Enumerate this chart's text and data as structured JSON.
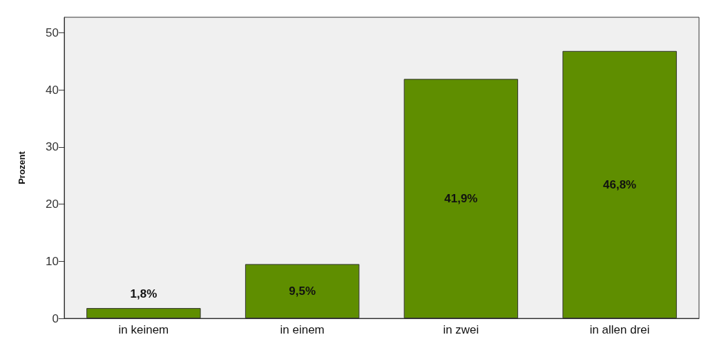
{
  "chart_data": {
    "type": "bar",
    "ylabel": "Prozent",
    "categories": [
      "in keinem",
      "in einem",
      "in zwei",
      "in allen drei"
    ],
    "values": [
      1.8,
      9.5,
      41.9,
      46.8
    ],
    "value_labels": [
      "1,8%",
      "9,5%",
      "41,9%",
      "46,8%"
    ],
    "color": "#5f8e00",
    "ylim": [
      0,
      52.7
    ],
    "yticks": [
      0,
      10,
      20,
      30,
      40,
      50
    ],
    "grid": false
  }
}
